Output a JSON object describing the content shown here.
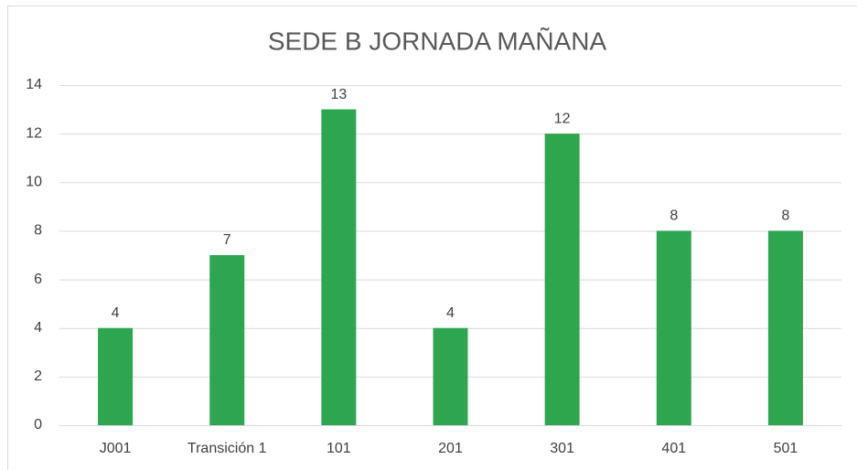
{
  "chart_data": {
    "type": "bar",
    "title": "SEDE B JORNADA MAÑANA",
    "categories": [
      "J001",
      "Transición 1",
      "101",
      "201",
      "301",
      "401",
      "501"
    ],
    "values": [
      4,
      7,
      13,
      4,
      12,
      8,
      8
    ],
    "color": "#2ea64f",
    "ylim": [
      0,
      14
    ],
    "yticks": [
      0,
      2,
      4,
      6,
      8,
      10,
      12,
      14
    ],
    "grid": true
  }
}
